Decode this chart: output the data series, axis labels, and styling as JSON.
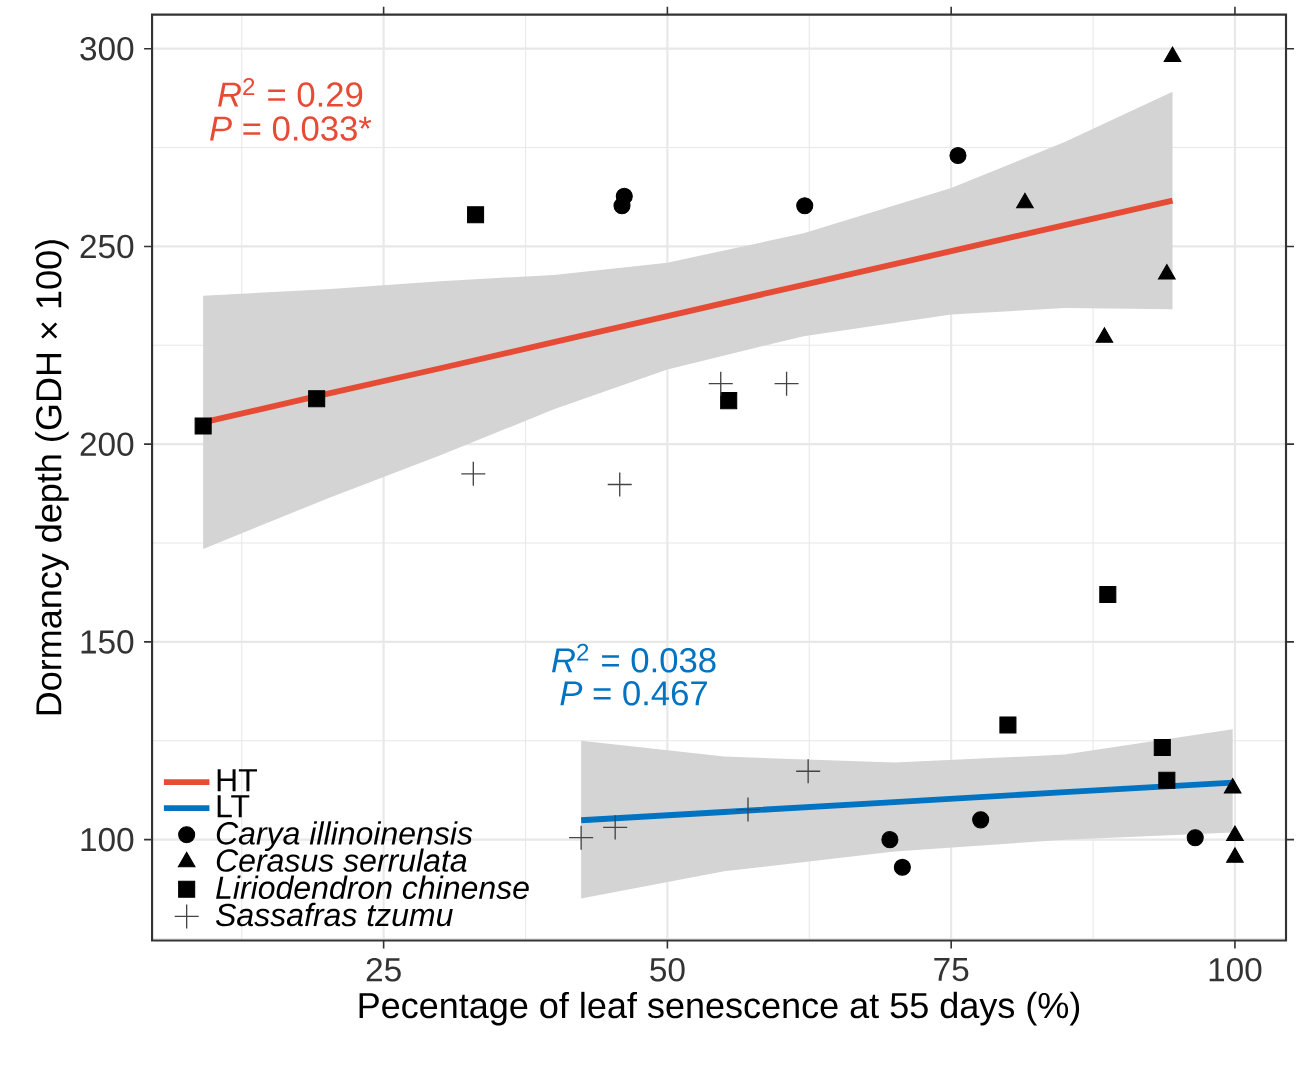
{
  "chart_data": {
    "type": "scatter",
    "xlabel": "Pecentage of leaf senescence at 55 days (%)",
    "ylabel": "Dormancy depth (GDH × 100)",
    "xlim": [
      4.6,
      104.5
    ],
    "ylim": [
      74.5,
      308.6
    ],
    "xticks": [
      25,
      50,
      75,
      100
    ],
    "yticks": [
      100,
      150,
      200,
      250,
      300
    ],
    "grid": true,
    "legend": "bottom left",
    "series": [
      {
        "name": "HT",
        "type": "line",
        "color": "#e64b35",
        "marker": "none",
        "x": [
          9.1,
          20,
          30,
          40,
          50,
          62,
          75,
          85,
          94.5
        ],
        "values": [
          205.5,
          212.7,
          219.2,
          225.8,
          232.4,
          240.3,
          248.8,
          255.4,
          261.6
        ],
        "lower": [
          173.5,
          186.2,
          197.2,
          208.8,
          218.9,
          227.3,
          232.8,
          234.4,
          234.1
        ],
        "upper": [
          237.5,
          239.2,
          241.2,
          242.8,
          245.9,
          253.3,
          264.8,
          276.4,
          289.1
        ]
      },
      {
        "name": "LT",
        "type": "line",
        "color": "#0073c2",
        "marker": "none",
        "x": [
          42.4,
          55,
          70,
          85,
          99.8
        ],
        "values": [
          104.9,
          107.0,
          109.5,
          112.0,
          114.4
        ],
        "lower": [
          85.1,
          92,
          97,
          100,
          101.8
        ],
        "upper": [
          125,
          121,
          119.5,
          121.5,
          127.9
        ]
      },
      {
        "name": "Carya illinoinensis",
        "color": "#000000",
        "marker": "circle",
        "x": [
          46.2,
          46.0,
          62.1,
          75.6,
          69.6,
          70.7,
          77.6,
          96.5
        ],
        "values": [
          262.7,
          260.3,
          260.3,
          273,
          100,
          93,
          105,
          100.5
        ]
      },
      {
        "name": "Cerasus serrulata",
        "color": "#000000",
        "marker": "triangle",
        "x": [
          94.5,
          81.5,
          94.0,
          88.5,
          99.8,
          100,
          100
        ],
        "values": [
          298,
          261,
          243,
          227,
          113,
          101,
          95.5
        ]
      },
      {
        "name": "Liriodendron chinense",
        "color": "#000000",
        "marker": "square",
        "x": [
          33.1,
          55.4,
          19.1,
          9.1,
          88.8,
          80.0,
          93.6,
          94.0
        ],
        "values": [
          258,
          211,
          211.5,
          204.6,
          162,
          129,
          123.3,
          115
        ]
      },
      {
        "name": "Sassafras tzumu",
        "color": "#444444",
        "marker": "cross",
        "x": [
          54.7,
          60.5,
          32.9,
          45.8,
          62.4,
          57.1,
          45.4,
          42.4
        ],
        "values": [
          215.3,
          215.3,
          192.5,
          189.8,
          117.3,
          107.6,
          103.1,
          100.5
        ]
      }
    ],
    "annotations": [
      "*R*$^{2}$ = 0.29",
      "*P* = 0.033*",
      "*R*$^{2}$ = 0.038",
      "*P* = 0.467"
    ]
  }
}
